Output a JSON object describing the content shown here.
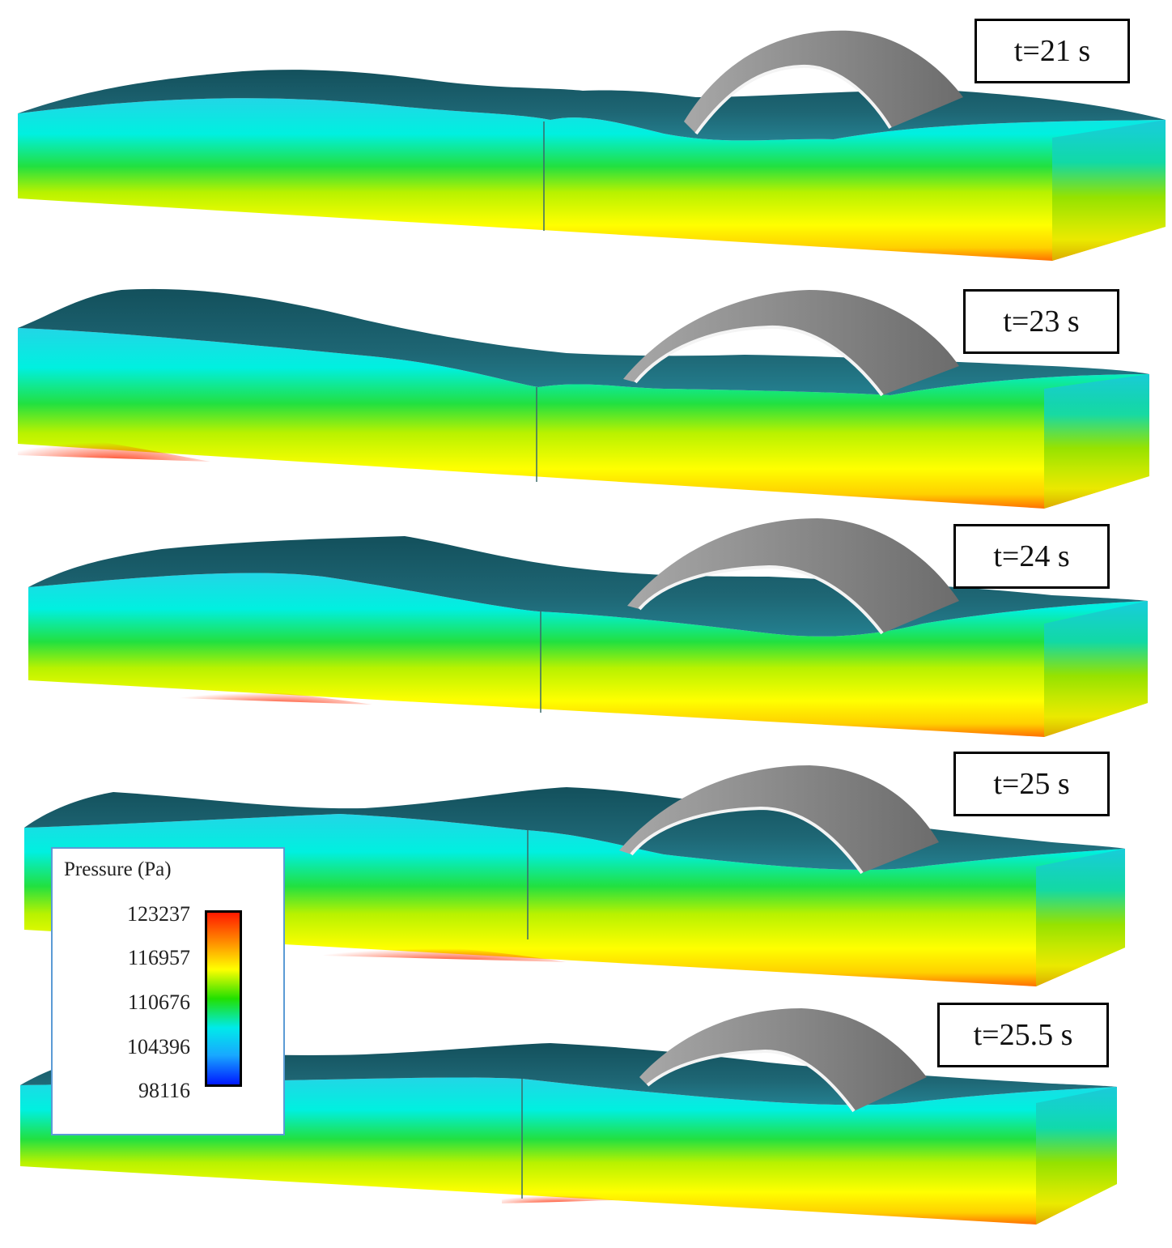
{
  "panels": [
    {
      "time_label": "t=21 s"
    },
    {
      "time_label": "t=23 s"
    },
    {
      "time_label": "t=24 s"
    },
    {
      "time_label": "t=25 s"
    },
    {
      "time_label": "t=25.5 s"
    }
  ],
  "legend": {
    "title": "Pressure (Pa)",
    "ticks": [
      "123237",
      "116957",
      "110676",
      "104396",
      "98116"
    ],
    "colormap": [
      "#ff1a00",
      "#ff8c00",
      "#ffff00",
      "#22e000",
      "#00eaea",
      "#18a8ff",
      "#0019ff"
    ]
  },
  "colors": {
    "water_surface": "#1c5f6d",
    "structure": "#8a8a8a"
  }
}
